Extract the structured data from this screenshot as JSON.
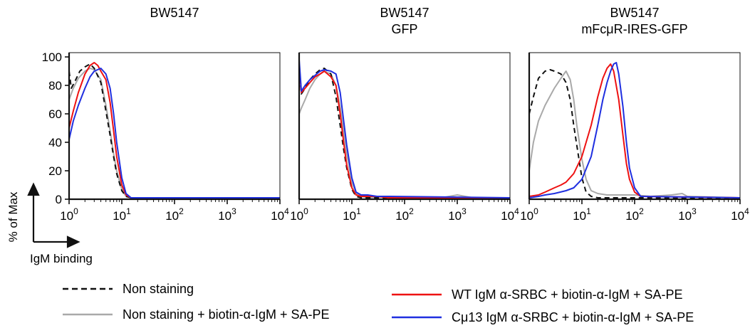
{
  "colors": {
    "non_staining": "#111111",
    "non_staining_biotin": "#a9a9a9",
    "wt_igm": "#ee1111",
    "cmu13_igm": "#1f2fe0",
    "axis": "#111111"
  },
  "yaxis": {
    "label": "% of Max",
    "ticks": [
      "0",
      "20",
      "40",
      "60",
      "80",
      "100"
    ],
    "range": [
      0,
      100
    ]
  },
  "xaxis": {
    "label": "IgM binding",
    "scale": "log",
    "range": [
      1,
      10000
    ],
    "ticks": [
      {
        "base": "10",
        "exp": "0"
      },
      {
        "base": "10",
        "exp": "1"
      },
      {
        "base": "10",
        "exp": "2"
      },
      {
        "base": "10",
        "exp": "3"
      },
      {
        "base": "10",
        "exp": "4"
      }
    ]
  },
  "legend": [
    {
      "label": "Non staining",
      "style": "dashed",
      "color": "#111111"
    },
    {
      "label": "Non staining + biotin-α-IgM + SA-PE",
      "style": "solid",
      "color": "#a9a9a9"
    },
    {
      "label": "WT IgM α-SRBC + biotin-α-IgM + SA-PE",
      "style": "solid",
      "color": "#ee1111"
    },
    {
      "label": "Cμ13 IgM α-SRBC + biotin-α-IgM + SA-PE",
      "style": "solid",
      "color": "#1f2fe0"
    }
  ],
  "chart_data": [
    {
      "type": "line",
      "title_lines": [
        "BW5147"
      ],
      "x_scale": "log",
      "xlim": [
        1,
        10000
      ],
      "ylim": [
        0,
        100
      ],
      "series": [
        {
          "name": "Non staining",
          "x": [
            1,
            1.1,
            1.3,
            1.6,
            2,
            2.5,
            3,
            4,
            5,
            6,
            7,
            8,
            10,
            12,
            15,
            20,
            100,
            10000
          ],
          "y": [
            90,
            78,
            83,
            90,
            93,
            95,
            92,
            82,
            62,
            45,
            30,
            18,
            6,
            2,
            1,
            1,
            1,
            1
          ]
        },
        {
          "name": "Non staining + biotin-α-IgM + SA-PE",
          "x": [
            1,
            1.2,
            1.5,
            2,
            2.5,
            3,
            4,
            5,
            6,
            7,
            8,
            10,
            12,
            15,
            20,
            10000
          ],
          "y": [
            70,
            78,
            85,
            90,
            92,
            91,
            84,
            66,
            48,
            32,
            20,
            7,
            2,
            1,
            1,
            1
          ]
        },
        {
          "name": "WT IgM α-SRBC + biotin-α-IgM + SA-PE",
          "x": [
            1,
            1.2,
            1.5,
            2,
            2.5,
            3,
            3.5,
            4,
            5,
            6,
            7,
            8,
            10,
            12,
            15,
            20,
            10000
          ],
          "y": [
            50,
            62,
            75,
            88,
            94,
            96,
            94,
            90,
            84,
            68,
            48,
            30,
            10,
            3,
            1,
            1,
            1
          ]
        },
        {
          "name": "Cμ13 IgM α-SRBC + biotin-α-IgM + SA-PE",
          "x": [
            1,
            1.2,
            1.5,
            2,
            2.5,
            3,
            4,
            5,
            6,
            7,
            8,
            10,
            12,
            15,
            20,
            10000
          ],
          "y": [
            42,
            55,
            66,
            78,
            86,
            90,
            92,
            88,
            78,
            60,
            40,
            15,
            4,
            1,
            1,
            1
          ]
        }
      ]
    },
    {
      "type": "line",
      "title_lines": [
        "BW5147",
        "GFP"
      ],
      "x_scale": "log",
      "xlim": [
        1,
        10000
      ],
      "ylim": [
        0,
        100
      ],
      "series": [
        {
          "name": "Non staining",
          "x": [
            1,
            1.1,
            1.3,
            1.6,
            2,
            2.5,
            3,
            4,
            5,
            6,
            7,
            8,
            10,
            12,
            15,
            20,
            10000
          ],
          "y": [
            92,
            74,
            78,
            84,
            88,
            91,
            92,
            88,
            72,
            52,
            35,
            22,
            7,
            2,
            1,
            1,
            1
          ]
        },
        {
          "name": "Non staining + biotin-α-IgM + SA-PE",
          "x": [
            1,
            1.1,
            1.3,
            1.6,
            2,
            2.5,
            3,
            4,
            5,
            6,
            7,
            8,
            10,
            12,
            15,
            20,
            50,
            100,
            500,
            1000,
            2000,
            10000
          ],
          "y": [
            60,
            64,
            70,
            78,
            84,
            88,
            90,
            88,
            80,
            65,
            48,
            32,
            12,
            4,
            2,
            1,
            2,
            1,
            1,
            3,
            1,
            1
          ]
        },
        {
          "name": "WT IgM α-SRBC + biotin-α-IgM + SA-PE",
          "x": [
            1,
            1.1,
            1.3,
            1.6,
            2,
            2.5,
            3,
            4,
            5,
            6,
            7,
            8,
            10,
            12,
            15,
            20,
            30,
            50,
            10000
          ],
          "y": [
            95,
            75,
            78,
            82,
            86,
            88,
            90,
            86,
            80,
            60,
            40,
            24,
            8,
            3,
            2,
            2,
            2,
            1,
            1
          ]
        },
        {
          "name": "Cμ13 IgM α-SRBC + biotin-α-IgM + SA-PE",
          "x": [
            1,
            1.1,
            1.3,
            1.6,
            2,
            2.5,
            3,
            4,
            5,
            6,
            7,
            8,
            10,
            12,
            15,
            20,
            30,
            50,
            10000
          ],
          "y": [
            98,
            76,
            80,
            84,
            87,
            90,
            91,
            90,
            88,
            75,
            55,
            38,
            15,
            5,
            3,
            3,
            2,
            2,
            1
          ]
        }
      ]
    },
    {
      "type": "line",
      "title_lines": [
        "BW5147",
        "mFcμR-IRES-GFP"
      ],
      "x_scale": "log",
      "xlim": [
        1,
        10000
      ],
      "ylim": [
        0,
        100
      ],
      "series": [
        {
          "name": "Non staining",
          "x": [
            1,
            1.2,
            1.5,
            2,
            2.5,
            3,
            4,
            5,
            6,
            7,
            8,
            10,
            12,
            15,
            20,
            30,
            10000
          ],
          "y": [
            60,
            72,
            85,
            90,
            91,
            90,
            88,
            82,
            70,
            52,
            38,
            15,
            5,
            2,
            1,
            1,
            1
          ]
        },
        {
          "name": "Non staining + biotin-α-IgM + SA-PE",
          "x": [
            1,
            1.2,
            1.5,
            2,
            3,
            4,
            5,
            6,
            7,
            8,
            10,
            12,
            15,
            20,
            30,
            50,
            100,
            200,
            500,
            800,
            1000,
            10000
          ],
          "y": [
            20,
            40,
            55,
            66,
            78,
            85,
            90,
            84,
            70,
            52,
            28,
            14,
            6,
            4,
            3,
            3,
            3,
            2,
            3,
            4,
            2,
            1
          ]
        },
        {
          "name": "WT IgM α-SRBC + biotin-α-IgM + SA-PE",
          "x": [
            1,
            1.5,
            2,
            3,
            4,
            5,
            7,
            10,
            15,
            20,
            25,
            30,
            35,
            40,
            50,
            60,
            70,
            80,
            100,
            130,
            10000
          ],
          "y": [
            2,
            3,
            5,
            8,
            10,
            12,
            18,
            30,
            52,
            72,
            85,
            92,
            95,
            90,
            70,
            45,
            25,
            14,
            5,
            2,
            1
          ]
        },
        {
          "name": "Cμ13 IgM α-SRBC + biotin-α-IgM + SA-PE",
          "x": [
            1,
            1.5,
            2,
            3,
            5,
            7,
            10,
            15,
            20,
            25,
            30,
            35,
            40,
            45,
            50,
            60,
            70,
            80,
            100,
            130,
            10000
          ],
          "y": [
            1,
            2,
            3,
            4,
            6,
            8,
            14,
            30,
            52,
            70,
            82,
            90,
            95,
            96,
            88,
            65,
            40,
            22,
            8,
            2,
            1
          ]
        }
      ]
    }
  ]
}
